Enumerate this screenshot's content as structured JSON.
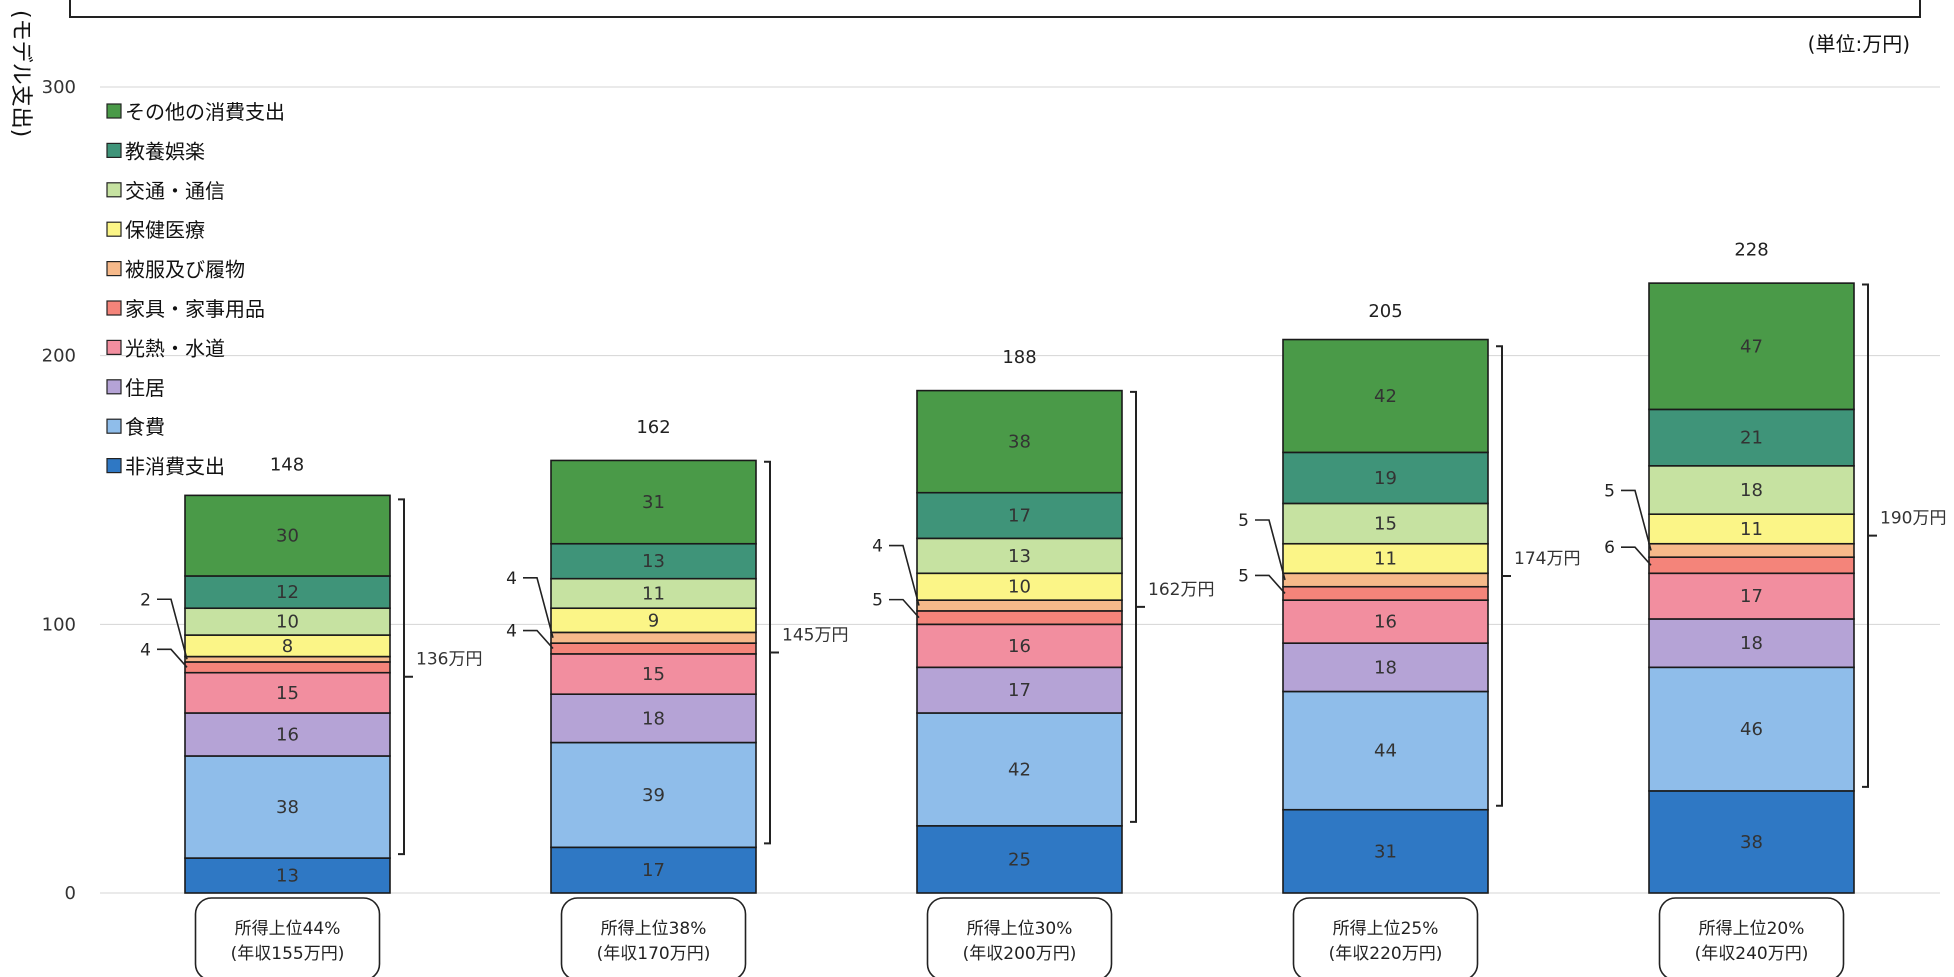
{
  "unit_label": "(単位:万円)",
  "y_axis_label": "(モデル支出)",
  "chart_data": {
    "type": "bar",
    "stacked": true,
    "ylim": [
      0,
      300
    ],
    "yticks": [
      0,
      100,
      200,
      300
    ],
    "grid": true,
    "legend_position": "top-left",
    "categories": [
      [
        "所得上位44%",
        "(年収155万円)"
      ],
      [
        "所得上位38%",
        "(年収170万円)"
      ],
      [
        "所得上位30%",
        "(年収200万円)"
      ],
      [
        "所得上位25%",
        "(年収220万円)"
      ],
      [
        "所得上位20%",
        "(年収240万円)"
      ]
    ],
    "totals": [
      148,
      162,
      188,
      205,
      228
    ],
    "series": [
      {
        "name": "非消費支出",
        "color": "#2f78c4",
        "values": [
          13,
          17,
          25,
          31,
          38
        ]
      },
      {
        "name": "食費",
        "color": "#8fbdea",
        "values": [
          38,
          39,
          42,
          44,
          46
        ]
      },
      {
        "name": "住居",
        "color": "#b5a3d6",
        "values": [
          16,
          18,
          17,
          18,
          18
        ]
      },
      {
        "name": "光熱・水道",
        "color": "#f28e9f",
        "values": [
          15,
          15,
          16,
          16,
          17
        ]
      },
      {
        "name": "家具・家事用品",
        "color": "#f4847a",
        "values": [
          4,
          4,
          5,
          5,
          6
        ]
      },
      {
        "name": "被服及び履物",
        "color": "#f6b98a",
        "values": [
          2,
          4,
          4,
          5,
          5
        ]
      },
      {
        "name": "保健医療",
        "color": "#fbf587",
        "values": [
          8,
          9,
          10,
          11,
          11
        ]
      },
      {
        "name": "交通・通信",
        "color": "#c6e2a1",
        "values": [
          10,
          11,
          13,
          15,
          18
        ]
      },
      {
        "name": "教養娯楽",
        "color": "#3f9479",
        "values": [
          12,
          13,
          17,
          19,
          21
        ]
      },
      {
        "name": "その他の消費支出",
        "color": "#4a9a48",
        "values": [
          30,
          31,
          38,
          42,
          47
        ]
      }
    ],
    "consumption_brackets": [
      "136万円",
      "145万円",
      "162万円",
      "174万円",
      "190万円"
    ]
  }
}
